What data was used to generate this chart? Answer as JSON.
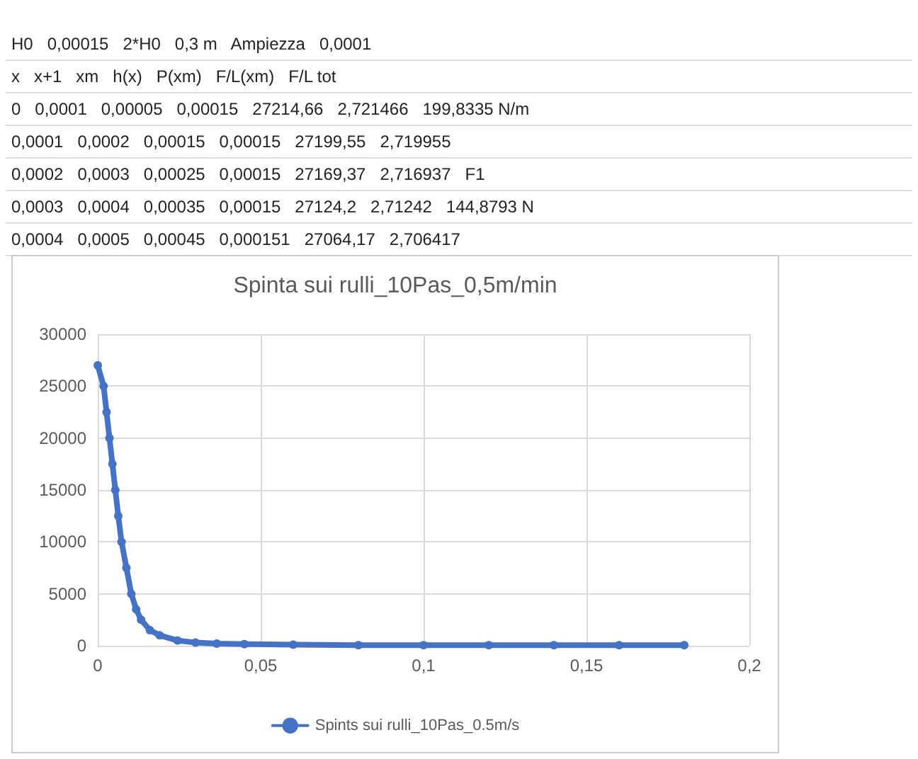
{
  "chart_data": {
    "type": "line",
    "title": "Spinta sui rulli_10Pas_0,5m/min",
    "annotations": [
      "H0   0,00015   2*H0   0,3 m   Ampiezza   0,0001",
      "x   x+1   xm   h(x)   P(xm)   F/L(xm)   F/L tot",
      "0   0,0001   0,00005   0,00015   27214,66   2,721466   199,8335 N/m",
      "0,0001   0,0002   0,00015   0,00015   27199,55   2,719955",
      "0,0002   0,0003   0,00025   0,00015   27169,37   2,716937   F1",
      "0,0003   0,0004   0,00035   0,00015   27124,2   2,71242   144,8793 N",
      "0,0004   0,0005   0,00045   0,000151   27064,17   2,706417"
    ],
    "series": [
      {
        "name": "Spints sui rulli_10Pas_0.5m/s",
        "color": "#4472c4",
        "x": [
          0,
          0.0018,
          0.0027,
          0.0036,
          0.0045,
          0.0054,
          0.0063,
          0.0073,
          0.0088,
          0.0103,
          0.0118,
          0.0133,
          0.016,
          0.019,
          0.0245,
          0.03,
          0.0365,
          0.045,
          0.06,
          0.08,
          0.1,
          0.12,
          0.14,
          0.16,
          0.18
        ],
        "values": [
          27000,
          25000,
          22500,
          20000,
          17500,
          15000,
          12500,
          10000,
          7500,
          5000,
          3500,
          2500,
          1500,
          1000,
          500,
          300,
          200,
          150,
          100,
          50,
          50,
          50,
          50,
          50,
          50
        ]
      }
    ],
    "xlim": [
      0,
      0.2
    ],
    "xticks": [
      {
        "value": 0,
        "label": "0"
      },
      {
        "value": 0.05,
        "label": "0,05"
      },
      {
        "value": 0.1,
        "label": "0,1"
      },
      {
        "value": 0.15,
        "label": "0,15"
      },
      {
        "value": 0.2,
        "label": "0,2"
      }
    ],
    "ylim": [
      0,
      30000
    ],
    "yticks": [
      0,
      5000,
      10000,
      15000,
      20000,
      25000,
      30000
    ],
    "grid": true,
    "legend": "bottom",
    "marker": "circle",
    "line_style": "solid"
  }
}
